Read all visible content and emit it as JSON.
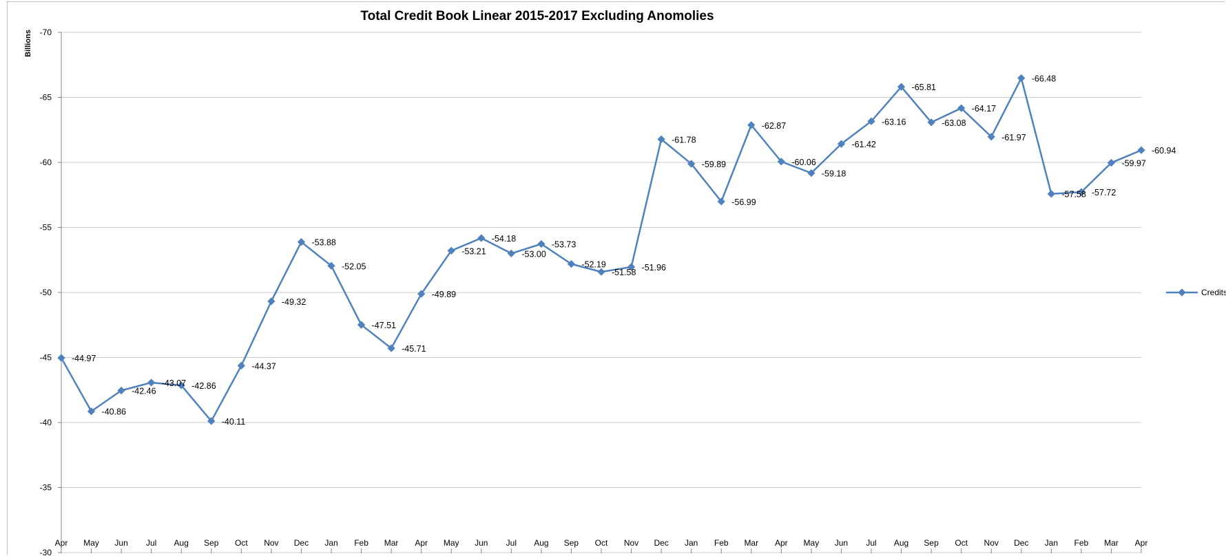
{
  "chart_data": {
    "type": "line",
    "title": "Total Credit Book Linear 2015-2017 Excluding Anomolies",
    "xlabel": "",
    "ylabel": "Billions",
    "y_axis_reversed": true,
    "ylim": [
      -30,
      -70
    ],
    "y_ticks": [
      "-70",
      "-65",
      "-60",
      "-55",
      "-50",
      "-45",
      "-40",
      "-35",
      "-30"
    ],
    "grid": "horizontal",
    "legend_position": "right",
    "categories": [
      "Apr",
      "May",
      "Jun",
      "Jul",
      "Aug",
      "Sep",
      "Oct",
      "Nov",
      "Dec",
      "Jan",
      "Feb",
      "Mar",
      "Apr",
      "May",
      "Jun",
      "Jul",
      "Aug",
      "Sep",
      "Oct",
      "Nov",
      "Dec",
      "Jan",
      "Feb",
      "Mar",
      "Apr",
      "May",
      "Jun",
      "Jul",
      "Aug",
      "Sep",
      "Oct",
      "Nov",
      "Dec",
      "Jan",
      "Feb",
      "Mar",
      "Apr"
    ],
    "series": [
      {
        "name": "Credits",
        "color": "#4f81bd",
        "values": [
          -44.97,
          -40.86,
          -42.46,
          -43.07,
          -42.86,
          -40.11,
          -44.37,
          -49.32,
          -53.88,
          -52.05,
          -47.51,
          -45.71,
          -49.89,
          -53.21,
          -54.18,
          -53.0,
          -53.73,
          -52.19,
          -51.58,
          -51.96,
          -61.78,
          -59.89,
          -56.99,
          -62.87,
          -60.06,
          -59.18,
          -61.42,
          -63.16,
          -65.81,
          -63.08,
          -64.17,
          -61.97,
          -66.48,
          -57.58,
          -57.72,
          -59.97,
          -60.94
        ],
        "labels": [
          "-44.97",
          "-40.86",
          "-42.46",
          "-43.07",
          "-42.86",
          "-40.11",
          "-44.37",
          "-49.32",
          "-53.88",
          "-52.05",
          "-47.51",
          "-45.71",
          "-49.89",
          "-53.21",
          "-54.18",
          "-53.00",
          "-53.73",
          "-52.19",
          "-51.58",
          "-51.96",
          "-61.78",
          "-59.89",
          "-56.99",
          "-62.87",
          "-60.06",
          "-59.18",
          "-61.42",
          "-63.16",
          "-65.81",
          "-63.08",
          "-64.17",
          "-61.97",
          "-66.48",
          "-57.58",
          "-57.72",
          "-59.97",
          "-60.94"
        ]
      }
    ]
  }
}
